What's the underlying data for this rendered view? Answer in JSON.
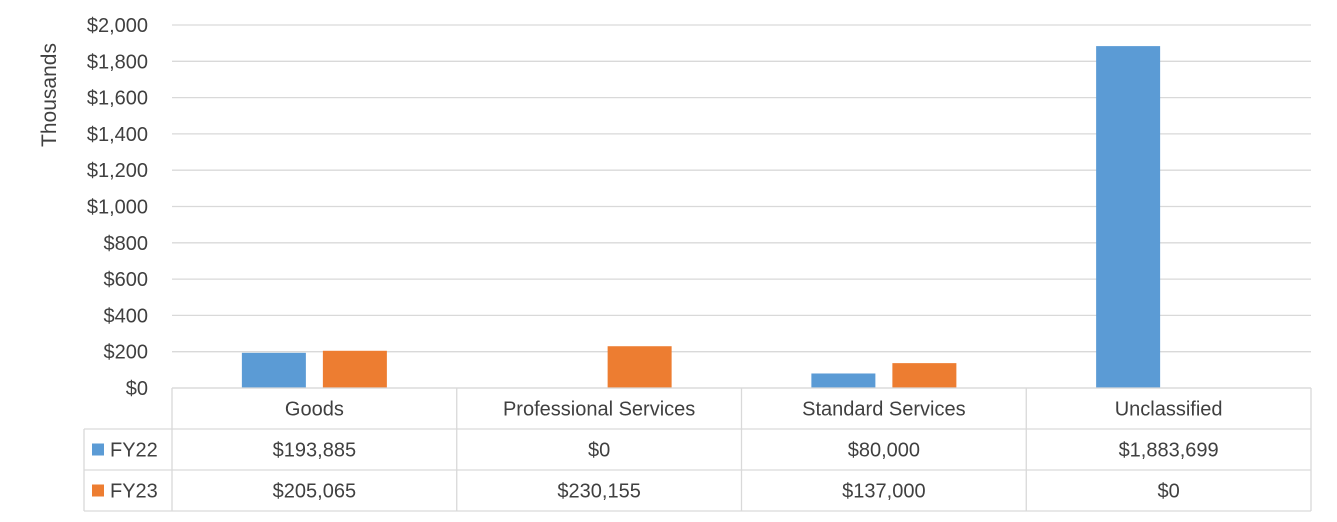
{
  "chart_data": {
    "type": "bar",
    "ylabel": "Thousands",
    "ylim": [
      0,
      2000
    ],
    "yticks": [
      "$0",
      "$200",
      "$400",
      "$600",
      "$800",
      "$1,000",
      "$1,200",
      "$1,400",
      "$1,600",
      "$1,800",
      "$2,000"
    ],
    "categories": [
      "Goods",
      "Professional Services",
      "Standard Services",
      "Unclassified"
    ],
    "grid": true,
    "legend": "table-left",
    "series": [
      {
        "name": "FY22",
        "color": "#5b9bd5",
        "values": [
          193.885,
          0,
          80.0,
          1883.699
        ],
        "labels": [
          "$193,885",
          "$0",
          "$80,000",
          "$1,883,699"
        ]
      },
      {
        "name": "FY23",
        "color": "#ed7d31",
        "values": [
          205.065,
          230.155,
          137.0,
          0
        ],
        "labels": [
          "$205,065",
          "$230,155",
          "$137,000",
          "$0"
        ]
      }
    ]
  }
}
